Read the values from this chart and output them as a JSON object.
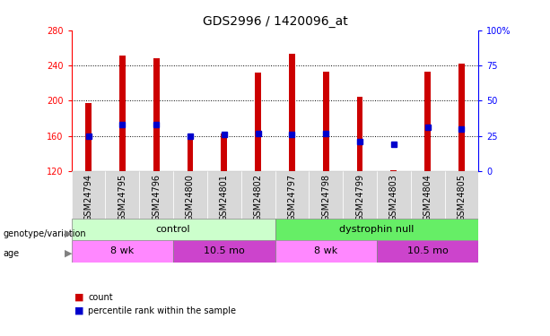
{
  "title": "GDS2996 / 1420096_at",
  "samples": [
    "GSM24794",
    "GSM24795",
    "GSM24796",
    "GSM24800",
    "GSM24801",
    "GSM24802",
    "GSM24797",
    "GSM24798",
    "GSM24799",
    "GSM24803",
    "GSM24804",
    "GSM24805"
  ],
  "counts": [
    197,
    251,
    248,
    160,
    163,
    232,
    253,
    233,
    204,
    121,
    233,
    242
  ],
  "bar_base": 120,
  "percentile_ranks": [
    25,
    33,
    33,
    25,
    26,
    27,
    26,
    27,
    21,
    19,
    31,
    30
  ],
  "ylim_left": [
    120,
    280
  ],
  "ylim_right": [
    0,
    100
  ],
  "yticks_left": [
    120,
    160,
    200,
    240,
    280
  ],
  "yticks_right": [
    0,
    25,
    50,
    75,
    100
  ],
  "bar_color": "#cc0000",
  "marker_color": "#0000cc",
  "bg_color": "#ffffff",
  "plot_bg": "#ffffff",
  "cell_bg": "#d8d8d8",
  "genotype_groups": [
    {
      "label": "control",
      "start": 0,
      "end": 6,
      "color": "#ccffcc"
    },
    {
      "label": "dystrophin null",
      "start": 6,
      "end": 12,
      "color": "#66ee66"
    }
  ],
  "age_groups": [
    {
      "label": "8 wk",
      "start": 0,
      "end": 3,
      "color": "#ff88ff"
    },
    {
      "label": "10.5 mo",
      "start": 3,
      "end": 6,
      "color": "#cc44cc"
    },
    {
      "label": "8 wk",
      "start": 6,
      "end": 9,
      "color": "#ff88ff"
    },
    {
      "label": "10.5 mo",
      "start": 9,
      "end": 12,
      "color": "#cc44cc"
    }
  ],
  "legend_count_color": "#cc0000",
  "legend_pct_color": "#0000cc",
  "title_fontsize": 10,
  "tick_fontsize": 7,
  "label_fontsize": 8
}
